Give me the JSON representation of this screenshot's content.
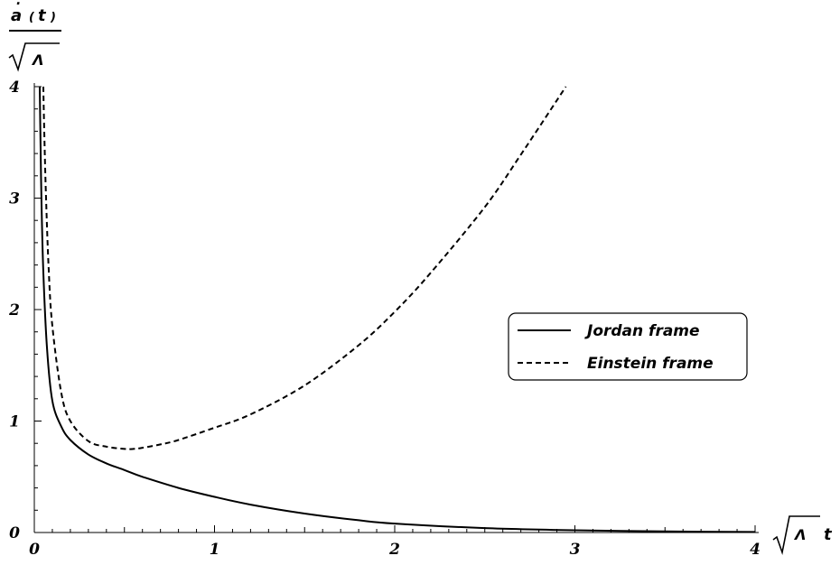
{
  "chart_data": {
    "type": "line",
    "ylabel": {
      "numerator": {
        "var": "a",
        "open": "(",
        "arg": "t",
        "close": ")"
      },
      "denominator": "Λ"
    },
    "xlabel": {
      "radicand": "Λ",
      "var": "t"
    },
    "xlim": [
      0,
      4
    ],
    "ylim": [
      0,
      4
    ],
    "x_ticks": [
      "0",
      "1",
      "2",
      "3",
      "4"
    ],
    "y_ticks": [
      "0",
      "1",
      "2",
      "3",
      "4"
    ],
    "grid": false,
    "legend": {
      "placement": "center-right"
    },
    "series": [
      {
        "name": "Jordan frame",
        "style": "solid",
        "color": "#000000",
        "x": [
          0.03,
          0.035,
          0.04,
          0.05,
          0.07,
          0.1,
          0.15,
          0.2,
          0.3,
          0.4,
          0.5,
          0.6,
          0.8,
          1.0,
          1.2,
          1.5,
          1.8,
          2.0,
          2.5,
          3.0,
          3.5,
          4.0
        ],
        "y": [
          4.0,
          3.43,
          2.94,
          2.33,
          1.66,
          1.18,
          0.95,
          0.83,
          0.7,
          0.62,
          0.56,
          0.5,
          0.4,
          0.32,
          0.25,
          0.17,
          0.11,
          0.08,
          0.04,
          0.02,
          0.01,
          0.005
        ]
      },
      {
        "name": "Einstein frame",
        "style": "dashed",
        "color": "#000000",
        "x": [
          0.05,
          0.055,
          0.065,
          0.08,
          0.1,
          0.15,
          0.2,
          0.3,
          0.4,
          0.5,
          0.55,
          0.6,
          0.7,
          0.8,
          1.0,
          1.2,
          1.5,
          1.8,
          2.0,
          2.2,
          2.5,
          2.7,
          2.95
        ],
        "y": [
          4.0,
          3.6,
          3.0,
          2.35,
          1.85,
          1.25,
          1.0,
          0.82,
          0.77,
          0.75,
          0.75,
          0.76,
          0.79,
          0.83,
          0.94,
          1.06,
          1.32,
          1.68,
          1.98,
          2.33,
          2.92,
          3.39,
          4.0
        ]
      }
    ]
  }
}
